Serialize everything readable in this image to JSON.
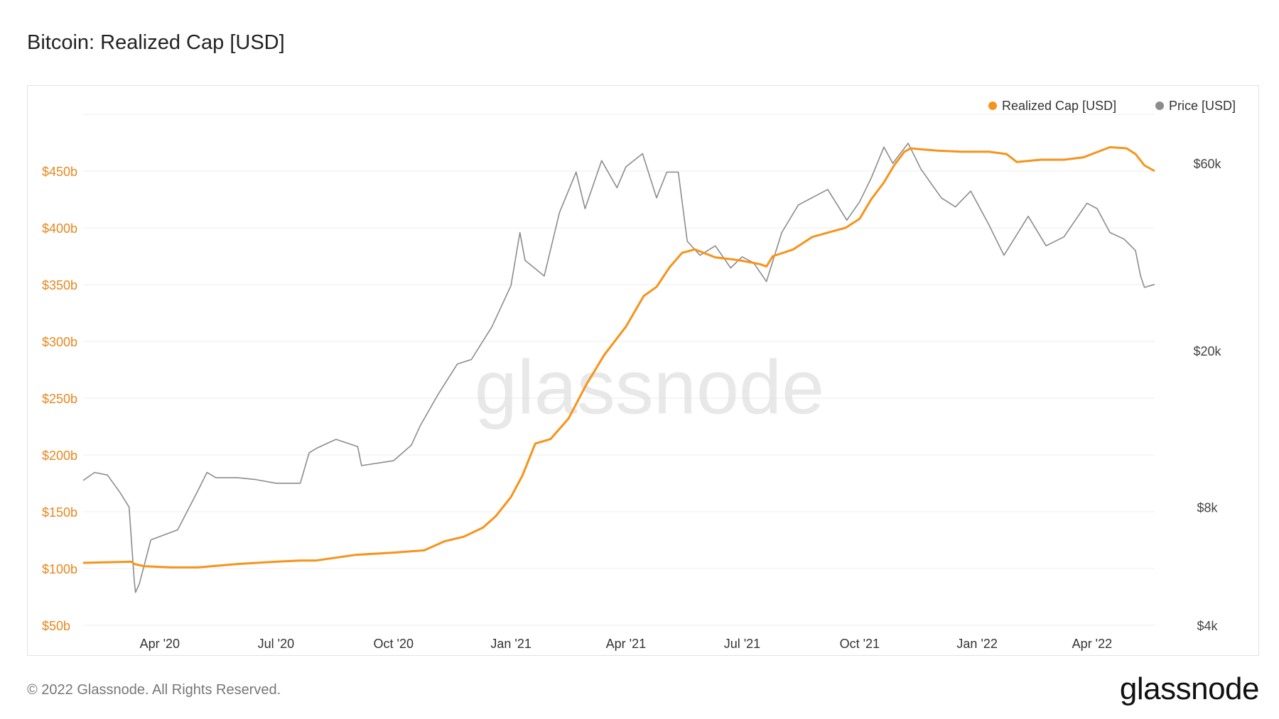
{
  "header": {
    "title": "Bitcoin: Realized Cap [USD]"
  },
  "footer": {
    "copyright": "© 2022 Glassnode. All Rights Reserved.",
    "logo_text": "glassnode"
  },
  "watermark": "glassnode",
  "colors": {
    "realized_cap": "#f7931a",
    "price": "#8c8c8c",
    "left_axis_text": "#e8871e",
    "right_axis_text": "#444444",
    "grid": "#eeeeee"
  },
  "chart_data": {
    "type": "line",
    "title": "Bitcoin: Realized Cap [USD]",
    "legend_position": "top-right",
    "grid": true,
    "x_ticks": [
      "Apr '20",
      "Jul '20",
      "Oct '20",
      "Jan '21",
      "Apr '21",
      "Jul '21",
      "Oct '21",
      "Jan '22",
      "Apr '22"
    ],
    "x_tick_dates": [
      "2020-04-01",
      "2020-07-01",
      "2020-10-01",
      "2021-01-01",
      "2021-04-01",
      "2021-07-01",
      "2021-10-01",
      "2022-01-01",
      "2022-04-01"
    ],
    "xlim": [
      "2020-02-01",
      "2022-05-20"
    ],
    "left_axis": {
      "label": "",
      "ticks": [
        "$50b",
        "$100b",
        "$150b",
        "$200b",
        "$250b",
        "$300b",
        "$350b",
        "$400b",
        "$450b"
      ],
      "tick_values": [
        50,
        100,
        150,
        200,
        250,
        300,
        350,
        400,
        450
      ],
      "ylim": [
        50,
        500
      ],
      "unit": "billion USD"
    },
    "right_axis": {
      "label": "",
      "scale": "log",
      "ticks": [
        "$4k",
        "$8k",
        "$20k",
        "$60k"
      ],
      "tick_values": [
        4000,
        8000,
        20000,
        60000
      ],
      "ylim": [
        4000,
        80000
      ]
    },
    "series": [
      {
        "name": "Realized Cap [USD]",
        "axis": "left",
        "x": [
          "2020-02-01",
          "2020-03-10",
          "2020-03-12",
          "2020-03-20",
          "2020-04-10",
          "2020-05-01",
          "2020-06-01",
          "2020-07-01",
          "2020-07-20",
          "2020-08-01",
          "2020-09-01",
          "2020-10-01",
          "2020-10-25",
          "2020-11-10",
          "2020-11-25",
          "2020-12-10",
          "2020-12-20",
          "2021-01-01",
          "2021-01-10",
          "2021-01-20",
          "2021-02-01",
          "2021-02-15",
          "2021-03-01",
          "2021-03-15",
          "2021-04-01",
          "2021-04-15",
          "2021-04-25",
          "2021-05-05",
          "2021-05-15",
          "2021-05-25",
          "2021-06-10",
          "2021-06-25",
          "2021-07-01",
          "2021-07-15",
          "2021-07-20",
          "2021-07-25",
          "2021-08-10",
          "2021-08-25",
          "2021-09-10",
          "2021-09-20",
          "2021-10-01",
          "2021-10-10",
          "2021-10-20",
          "2021-10-28",
          "2021-11-05",
          "2021-11-10",
          "2021-11-20",
          "2021-12-01",
          "2021-12-20",
          "2022-01-10",
          "2022-01-24",
          "2022-02-01",
          "2022-02-20",
          "2022-03-10",
          "2022-03-25",
          "2022-04-01",
          "2022-04-15",
          "2022-04-28",
          "2022-05-05",
          "2022-05-12",
          "2022-05-20"
        ],
        "values": [
          105,
          106,
          104,
          102,
          101,
          101,
          104,
          106,
          107,
          107,
          112,
          114,
          116,
          124,
          128,
          136,
          146,
          163,
          182,
          210,
          214,
          232,
          262,
          288,
          313,
          340,
          348,
          365,
          378,
          381,
          374,
          372,
          371,
          368,
          366,
          375,
          381,
          392,
          397,
          400,
          408,
          425,
          440,
          455,
          467,
          470,
          469,
          468,
          467,
          467,
          465,
          458,
          460,
          460,
          462,
          465,
          471,
          470,
          465,
          455,
          450
        ]
      },
      {
        "name": "Price [USD]",
        "axis": "right",
        "x": [
          "2020-02-01",
          "2020-02-10",
          "2020-02-20",
          "2020-03-01",
          "2020-03-08",
          "2020-03-12",
          "2020-03-13",
          "2020-03-16",
          "2020-03-25",
          "2020-04-15",
          "2020-04-30",
          "2020-05-08",
          "2020-05-15",
          "2020-06-01",
          "2020-06-15",
          "2020-07-01",
          "2020-07-20",
          "2020-07-27",
          "2020-08-02",
          "2020-08-17",
          "2020-09-03",
          "2020-09-06",
          "2020-10-01",
          "2020-10-15",
          "2020-10-22",
          "2020-11-05",
          "2020-11-20",
          "2020-12-01",
          "2020-12-17",
          "2021-01-01",
          "2021-01-08",
          "2021-01-12",
          "2021-01-27",
          "2021-02-08",
          "2021-02-21",
          "2021-02-28",
          "2021-03-13",
          "2021-03-25",
          "2021-04-01",
          "2021-04-14",
          "2021-04-25",
          "2021-05-03",
          "2021-05-12",
          "2021-05-19",
          "2021-05-29",
          "2021-06-10",
          "2021-06-22",
          "2021-07-01",
          "2021-07-10",
          "2021-07-20",
          "2021-08-01",
          "2021-08-14",
          "2021-09-06",
          "2021-09-21",
          "2021-10-01",
          "2021-10-10",
          "2021-10-20",
          "2021-10-27",
          "2021-11-08",
          "2021-11-18",
          "2021-12-04",
          "2021-12-15",
          "2021-12-27",
          "2022-01-10",
          "2022-01-22",
          "2022-02-10",
          "2022-02-24",
          "2022-03-10",
          "2022-03-28",
          "2022-04-05",
          "2022-04-15",
          "2022-04-26",
          "2022-05-05",
          "2022-05-09",
          "2022-05-12",
          "2022-05-20"
        ],
        "values": [
          9350,
          9800,
          9650,
          8700,
          8000,
          5200,
          4850,
          5100,
          6600,
          7000,
          8700,
          9800,
          9500,
          9500,
          9400,
          9200,
          9200,
          11000,
          11300,
          11900,
          11400,
          10200,
          10500,
          11500,
          12900,
          15500,
          18500,
          19000,
          23000,
          29300,
          40000,
          34000,
          31000,
          45000,
          57000,
          46000,
          61000,
          52000,
          58800,
          63500,
          49000,
          57000,
          57000,
          38000,
          35000,
          37000,
          32500,
          34700,
          33500,
          30000,
          40000,
          47000,
          51500,
          43000,
          47900,
          55000,
          66000,
          60000,
          67500,
          58000,
          49000,
          46500,
          51000,
          42000,
          35000,
          44000,
          37000,
          39000,
          47500,
          46000,
          40000,
          38500,
          36000,
          31000,
          29000,
          29500
        ]
      }
    ]
  }
}
